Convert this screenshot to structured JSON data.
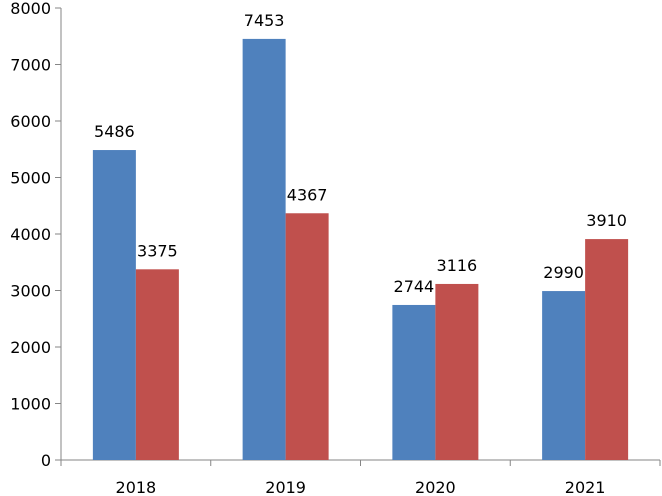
{
  "chart_data": {
    "type": "bar",
    "title": "",
    "xlabel": "",
    "ylabel": "",
    "categories": [
      "2018",
      "2019",
      "2020",
      "2021"
    ],
    "series": [
      {
        "color": "#4F81BD",
        "values": [
          5486,
          7453,
          2744,
          2990
        ]
      },
      {
        "color": "#C0504D",
        "values": [
          3375,
          4367,
          3116,
          3910
        ]
      }
    ],
    "ylim": [
      0,
      8000
    ],
    "yticks": [
      0,
      1000,
      2000,
      3000,
      4000,
      5000,
      6000,
      7000,
      8000
    ],
    "ytick_labels": [
      "0",
      "1000",
      "2000",
      "3000",
      "4000",
      "5000",
      "6000",
      "7000",
      "8000"
    ],
    "grid": false,
    "legend": "none",
    "data_labels": true
  }
}
